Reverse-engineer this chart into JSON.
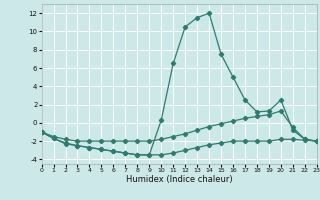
{
  "xlabel": "Humidex (Indice chaleur)",
  "xlim": [
    0,
    23
  ],
  "ylim": [
    -4.5,
    13.0
  ],
  "yticks": [
    -4,
    -2,
    0,
    2,
    4,
    6,
    8,
    10,
    12
  ],
  "xticks": [
    0,
    1,
    2,
    3,
    4,
    5,
    6,
    7,
    8,
    9,
    10,
    11,
    12,
    13,
    14,
    15,
    16,
    17,
    18,
    19,
    20,
    21,
    22,
    23
  ],
  "background_color": "#cce8e8",
  "grid_color": "#b8d8d8",
  "line_color": "#2d7d6e",
  "lines": [
    {
      "x": [
        0,
        1,
        2,
        3,
        4,
        5,
        6,
        7,
        8,
        9,
        10,
        11,
        12,
        13,
        14,
        15,
        16,
        17,
        18,
        19,
        20,
        21,
        22,
        23
      ],
      "y": [
        -1.0,
        -1.7,
        -2.3,
        -2.5,
        -2.7,
        -2.9,
        -3.1,
        -3.3,
        -3.5,
        -3.5,
        0.3,
        6.5,
        10.5,
        11.5,
        12.0,
        7.5,
        5.0,
        2.5,
        1.2,
        1.3,
        2.5,
        -0.8,
        -1.8,
        -2.0
      ]
    },
    {
      "x": [
        0,
        1,
        2,
        3,
        4,
        5,
        6,
        7,
        8,
        9,
        10,
        11,
        12,
        13,
        14,
        15,
        16,
        17,
        18,
        19,
        20,
        21,
        22,
        23
      ],
      "y": [
        -1.0,
        -1.5,
        -1.8,
        -2.0,
        -2.0,
        -2.0,
        -2.0,
        -2.0,
        -2.0,
        -2.0,
        -1.8,
        -1.5,
        -1.2,
        -0.8,
        -0.4,
        -0.1,
        0.2,
        0.5,
        0.7,
        0.9,
        1.3,
        -0.5,
        -1.8,
        -2.0
      ]
    },
    {
      "x": [
        0,
        1,
        2,
        3,
        4,
        5,
        6,
        7,
        8,
        9,
        10,
        11,
        12,
        13,
        14,
        15,
        16,
        17,
        18,
        19,
        20,
        21,
        22,
        23
      ],
      "y": [
        -1.0,
        -1.7,
        -2.2,
        -2.5,
        -2.7,
        -2.9,
        -3.1,
        -3.3,
        -3.5,
        -3.5,
        -3.5,
        -3.3,
        -3.0,
        -2.7,
        -2.4,
        -2.2,
        -2.0,
        -2.0,
        -2.0,
        -2.0,
        -1.8,
        -1.8,
        -1.9,
        -2.0
      ]
    }
  ]
}
